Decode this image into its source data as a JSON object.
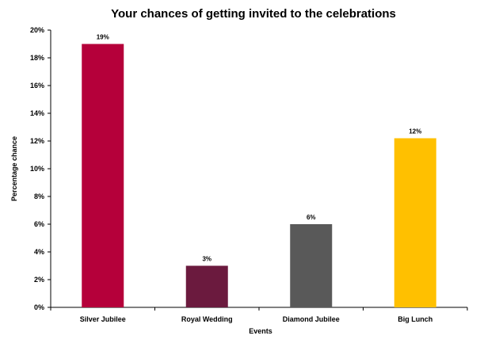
{
  "chart_data": {
    "type": "bar",
    "title": "Your chances of getting invited to the celebrations",
    "xlabel": "Events",
    "ylabel": "Percentage chance",
    "categories": [
      "Silver Jubilee",
      "Royal Wedding",
      "Diamond Jubilee",
      "Big Lunch"
    ],
    "values": [
      19,
      3,
      6,
      12.2
    ],
    "data_labels": [
      "19%",
      "3%",
      "6%",
      "12%"
    ],
    "colors": [
      "#b5003a",
      "#6b1a3e",
      "#595959",
      "#ffc000"
    ],
    "ylim": [
      0,
      20
    ],
    "yticks": [
      0,
      2,
      4,
      6,
      8,
      10,
      12,
      14,
      16,
      18,
      20
    ],
    "ytick_labels": [
      "0%",
      "2%",
      "4%",
      "6%",
      "8%",
      "10%",
      "12%",
      "14%",
      "16%",
      "18%",
      "20%"
    ],
    "grid": false,
    "legend": "none"
  }
}
